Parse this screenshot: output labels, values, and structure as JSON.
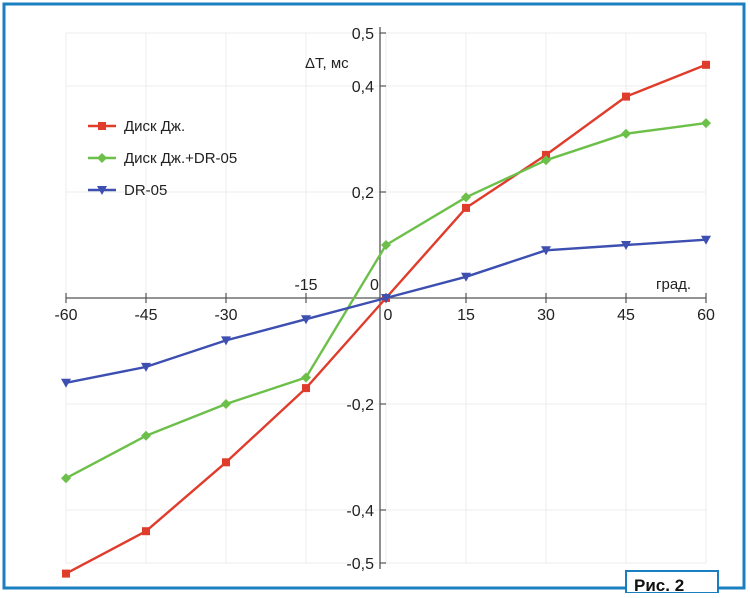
{
  "chart_data": {
    "type": "line",
    "x": [
      -60,
      -45,
      -30,
      -15,
      0,
      15,
      30,
      45,
      60
    ],
    "x_tick_labels": [
      "-60",
      "-45",
      "-30",
      "-15",
      "0",
      "15",
      "30",
      "45",
      "60"
    ],
    "y_tick_labels": [
      "0,5",
      "0,4",
      "0,2",
      "-0,2",
      "-0,4",
      "-0,5"
    ],
    "y_tick_values": [
      0.5,
      0.4,
      0.2,
      -0.2,
      -0.4,
      -0.5
    ],
    "origin_label": "0",
    "xlabel": "град.",
    "ylabel": "ΔТ, мс",
    "xlim": [
      -60,
      60
    ],
    "ylim": [
      -0.5,
      0.5
    ],
    "grid": true,
    "legend_position": "top-left",
    "series": [
      {
        "name": "Диск Дж.",
        "color": "#e03c2c",
        "marker": "square",
        "values": [
          -0.52,
          -0.44,
          -0.31,
          -0.17,
          0.0,
          0.17,
          0.27,
          0.38,
          0.44
        ]
      },
      {
        "name": "Диск Дж.+DR-05",
        "color": "#6cc04a",
        "marker": "diamond",
        "values": [
          -0.34,
          -0.26,
          -0.2,
          -0.15,
          0.1,
          0.19,
          0.26,
          0.31,
          0.33
        ]
      },
      {
        "name": "DR-05",
        "color": "#3d4fb0",
        "marker": "triangle-down",
        "values": [
          -0.16,
          -0.13,
          -0.08,
          -0.04,
          0.0,
          0.04,
          0.09,
          0.1,
          0.11
        ]
      }
    ]
  },
  "figure_label": "Рис. 2",
  "frame_color": "#1a7fc0"
}
